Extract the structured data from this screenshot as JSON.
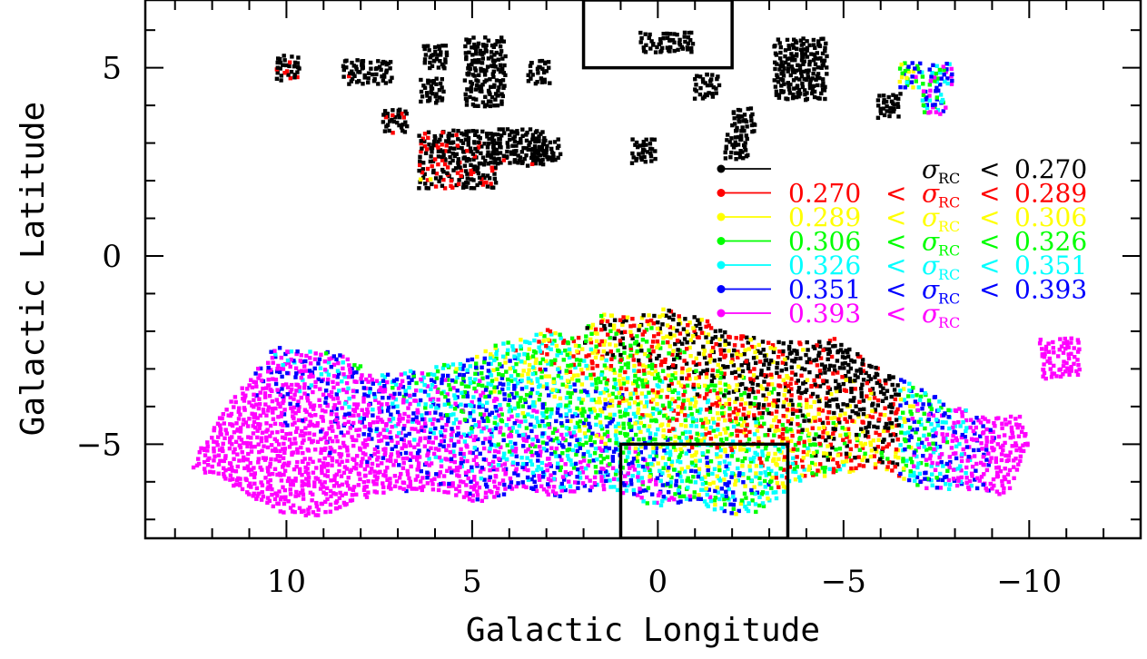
{
  "chart_data": {
    "type": "scatter",
    "title": "",
    "xlabel": "Galactic Longitude",
    "ylabel": "Galactic Latitude",
    "xlim": [
      13.8,
      -13.0
    ],
    "ylim": [
      -7.5,
      6.8
    ],
    "x_ticks": [
      10,
      5,
      0,
      -5,
      -10
    ],
    "x_tick_labels": [
      "10",
      "5",
      "0",
      "−5",
      "−10"
    ],
    "y_ticks": [
      5,
      0,
      -5
    ],
    "y_tick_labels": [
      "5",
      "0",
      "−5"
    ],
    "grid": false,
    "legend_position": "right-center",
    "color_variable": "σ_RC",
    "series": [
      {
        "name": "σRC < 0.270",
        "color": "#000000",
        "range": [
          null,
          0.27
        ],
        "label_parts": [
          "",
          "",
          "σ",
          "RC",
          "<",
          "0.270"
        ]
      },
      {
        "name": "0.270 < σRC < 0.289",
        "color": "#ff0000",
        "range": [
          0.27,
          0.289
        ],
        "label_parts": [
          "0.270",
          "<",
          "σ",
          "RC",
          "<",
          "0.289"
        ]
      },
      {
        "name": "0.289 < σRC < 0.306",
        "color": "#ffff00",
        "range": [
          0.289,
          0.306
        ],
        "label_parts": [
          "0.289",
          "<",
          "σ",
          "RC",
          "<",
          "0.306"
        ]
      },
      {
        "name": "0.306 < σRC < 0.326",
        "color": "#00ff00",
        "range": [
          0.306,
          0.326
        ],
        "label_parts": [
          "0.306",
          "<",
          "σ",
          "RC",
          "<",
          "0.326"
        ]
      },
      {
        "name": "0.326 < σRC < 0.351",
        "color": "#00ffff",
        "range": [
          0.326,
          0.351
        ],
        "label_parts": [
          "0.326",
          "<",
          "σ",
          "RC",
          "<",
          "0.351"
        ]
      },
      {
        "name": "0.351 < σRC < 0.393",
        "color": "#0000ff",
        "range": [
          0.351,
          0.393
        ],
        "label_parts": [
          "0.351",
          "<",
          "σ",
          "RC",
          "<",
          "0.393"
        ]
      },
      {
        "name": "0.393 < σRC",
        "color": "#ff00ff",
        "range": [
          0.393,
          null
        ],
        "label_parts": [
          "0.393",
          "<",
          "σ",
          "RC",
          "",
          ""
        ]
      }
    ],
    "annotations": {
      "boxes": [
        {
          "x": [
            2.0,
            -2.0
          ],
          "y": [
            5.0,
            6.8
          ]
        },
        {
          "x": [
            1.0,
            -3.5
          ],
          "y": [
            -5.0,
            -7.5
          ]
        }
      ]
    },
    "regions": {
      "main_band": {
        "outline": [
          [
            12.6,
            -5.6
          ],
          [
            11.8,
            -4.2
          ],
          [
            10.3,
            -2.4
          ],
          [
            8.5,
            -2.6
          ],
          [
            7.6,
            -3.2
          ],
          [
            6.4,
            -3.0
          ],
          [
            5.3,
            -2.8
          ],
          [
            4.2,
            -2.3
          ],
          [
            3.6,
            -2.2
          ],
          [
            3.1,
            -1.9
          ],
          [
            2.2,
            -2.2
          ],
          [
            1.5,
            -1.5
          ],
          [
            0.8,
            -1.6
          ],
          [
            -0.2,
            -1.4
          ],
          [
            -0.8,
            -1.6
          ],
          [
            -1.2,
            -1.6
          ],
          [
            -1.5,
            -1.9
          ],
          [
            -2.0,
            -2.0
          ],
          [
            -3.0,
            -2.3
          ],
          [
            -4.8,
            -2.2
          ],
          [
            -5.3,
            -2.5
          ],
          [
            -6.0,
            -3.0
          ],
          [
            -7.0,
            -3.5
          ],
          [
            -8.0,
            -4.0
          ],
          [
            -9.0,
            -4.3
          ],
          [
            -9.8,
            -4.2
          ],
          [
            -10.0,
            -5.0
          ],
          [
            -9.4,
            -6.4
          ],
          [
            -8.6,
            -6.2
          ],
          [
            -7.0,
            -6.2
          ],
          [
            -6.0,
            -5.6
          ],
          [
            -4.9,
            -5.8
          ],
          [
            -3.7,
            -6.0
          ],
          [
            -2.8,
            -6.8
          ],
          [
            -2.0,
            -6.9
          ],
          [
            -0.8,
            -6.5
          ],
          [
            0.0,
            -6.7
          ],
          [
            1.2,
            -6.2
          ],
          [
            1.7,
            -6.2
          ],
          [
            2.7,
            -6.4
          ],
          [
            3.7,
            -6.2
          ],
          [
            4.8,
            -6.6
          ],
          [
            6.0,
            -6.2
          ],
          [
            7.3,
            -6.3
          ],
          [
            8.4,
            -6.6
          ],
          [
            9.0,
            -6.9
          ],
          [
            10.0,
            -6.9
          ],
          [
            11.5,
            -6.1
          ]
        ]
      },
      "spots": [
        {
          "center": [
            -10.8,
            -2.7
          ],
          "half": [
            0.5,
            0.5
          ]
        }
      ],
      "top_fields": [
        {
          "center": [
            10.0,
            5.0
          ],
          "half": [
            0.3,
            0.28
          ]
        },
        {
          "center": [
            8.2,
            4.9
          ],
          "half": [
            0.3,
            0.28
          ]
        },
        {
          "center": [
            7.5,
            4.9
          ],
          "half": [
            0.3,
            0.28
          ]
        },
        {
          "center": [
            7.1,
            3.6
          ],
          "half": [
            0.3,
            0.28
          ]
        },
        {
          "center": [
            6.0,
            5.3
          ],
          "half": [
            0.3,
            0.28
          ]
        },
        {
          "center": [
            6.1,
            4.4
          ],
          "half": [
            0.3,
            0.28
          ]
        },
        {
          "center": [
            4.7,
            4.9
          ],
          "half": [
            0.55,
            0.9
          ]
        },
        {
          "center": [
            3.2,
            4.9
          ],
          "half": [
            0.3,
            0.28
          ]
        },
        {
          "center": [
            5.4,
            2.6
          ],
          "half": [
            1.0,
            0.75
          ]
        },
        {
          "center": [
            3.8,
            2.9
          ],
          "half": [
            0.7,
            0.45
          ]
        },
        {
          "center": [
            3.0,
            2.8
          ],
          "half": [
            0.35,
            0.28
          ]
        },
        {
          "center": [
            0.4,
            2.8
          ],
          "half": [
            0.3,
            0.28
          ]
        },
        {
          "center": [
            -0.2,
            5.7
          ],
          "half": [
            0.7,
            0.25
          ]
        },
        {
          "center": [
            -1.3,
            4.5
          ],
          "half": [
            0.3,
            0.28
          ]
        },
        {
          "center": [
            -2.3,
            3.6
          ],
          "half": [
            0.3,
            0.28
          ]
        },
        {
          "center": [
            -2.1,
            2.9
          ],
          "half": [
            0.3,
            0.28
          ]
        },
        {
          "center": [
            -3.8,
            5.0
          ],
          "half": [
            0.7,
            0.8
          ]
        },
        {
          "center": [
            -6.2,
            4.0
          ],
          "half": [
            0.3,
            0.28
          ]
        },
        {
          "center": [
            -6.8,
            4.8
          ],
          "half": [
            0.3,
            0.28
          ]
        },
        {
          "center": [
            -7.4,
            4.1
          ],
          "half": [
            0.3,
            0.28
          ]
        },
        {
          "center": [
            -7.6,
            4.8
          ],
          "half": [
            0.3,
            0.28
          ]
        }
      ]
    }
  }
}
